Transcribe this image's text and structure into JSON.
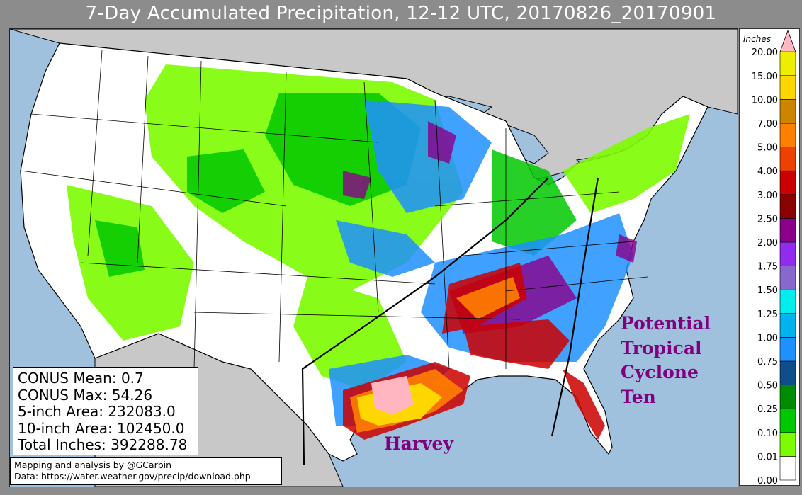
{
  "title": "7-Day Accumulated Precipitation, 12-12 UTC, 20170826_20170901",
  "stats": {
    "mean": "CONUS Mean: 0.7",
    "max": "CONUS Max: 54.26",
    "area5": "5-inch Area: 232083.0",
    "area10": "10-inch Area: 102450.0",
    "total": "Total Inches: 392288.78"
  },
  "credits": {
    "line1": "Mapping and analysis by @GCarbin",
    "line2": "Data: https://water.weather.gov/precip/download.php"
  },
  "annotations": {
    "ptc": [
      "Potential",
      "Tropical",
      "Cyclone",
      "Ten"
    ],
    "harvey": "Harvey"
  },
  "legend": {
    "unit": "Inches",
    "bins": [
      {
        "label": "0.00",
        "color": "#ffffff"
      },
      {
        "label": "0.01",
        "color": "#7cfc00"
      },
      {
        "label": "0.10",
        "color": "#00c800"
      },
      {
        "label": "0.25",
        "color": "#008c00"
      },
      {
        "label": "0.50",
        "color": "#104e8b"
      },
      {
        "label": "0.75",
        "color": "#1e90ff"
      },
      {
        "label": "1.00",
        "color": "#00b2ee"
      },
      {
        "label": "1.25",
        "color": "#00eeee"
      },
      {
        "label": "1.50",
        "color": "#8968cd"
      },
      {
        "label": "1.75",
        "color": "#912cee"
      },
      {
        "label": "2.00",
        "color": "#8b008b"
      },
      {
        "label": "2.50",
        "color": "#8b0000"
      },
      {
        "label": "3.00",
        "color": "#cd0000"
      },
      {
        "label": "4.00",
        "color": "#ee4000"
      },
      {
        "label": "5.00",
        "color": "#ff7f00"
      },
      {
        "label": "7.00",
        "color": "#cd8500"
      },
      {
        "label": "10.00",
        "color": "#ffd700"
      },
      {
        "label": "15.00",
        "color": "#eeee00"
      },
      {
        "label": "20.00",
        "color": "#ffb6c1"
      }
    ]
  },
  "colors": {
    "ocean": "#9fc1dd",
    "land_outside": "#c8c8c8",
    "track": "#000000",
    "annotation": "#800080"
  }
}
